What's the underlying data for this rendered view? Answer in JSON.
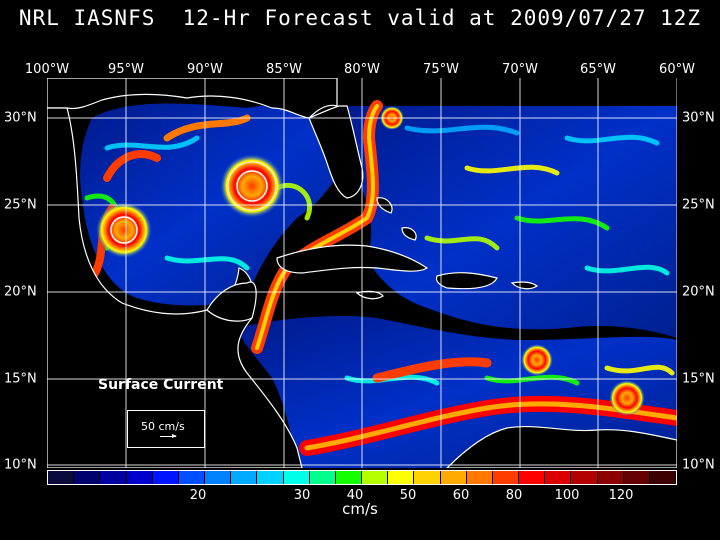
{
  "title": "NRL IASNFS  12-Hr Forecast valid at 2009/07/27 12Z",
  "longitude_labels": [
    "100°W",
    "95°W",
    "90°W",
    "85°W",
    "80°W",
    "75°W",
    "70°W",
    "65°W",
    "60°W"
  ],
  "latitude_labels": [
    "30°N",
    "25°N",
    "20°N",
    "15°N",
    "10°N"
  ],
  "legend": {
    "title": "Surface Current",
    "reference": "50 cm/s"
  },
  "colorbar": {
    "units": "cm/s",
    "tick_labels": [
      "20",
      "30",
      "40",
      "50",
      "60",
      "80",
      "100",
      "120"
    ],
    "colors": [
      "#0a0a3c",
      "#00006e",
      "#0000a0",
      "#0000cd",
      "#0014ff",
      "#0050ff",
      "#0082ff",
      "#00aaff",
      "#00d2ff",
      "#00ffe6",
      "#00ff8c",
      "#14ff00",
      "#b4ff00",
      "#ffff00",
      "#ffd200",
      "#ffaa00",
      "#ff7800",
      "#ff3c00",
      "#ff0000",
      "#dc0000",
      "#b40000",
      "#8c0000",
      "#640000",
      "#3c0000"
    ]
  }
}
